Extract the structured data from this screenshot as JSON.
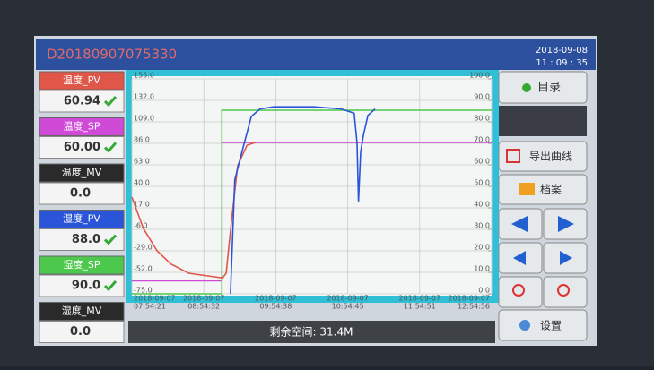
{
  "header": {
    "id": "D20180907075330",
    "date": "2018-09-08",
    "time": "11 : 09 : 35"
  },
  "readouts": [
    {
      "label": "温度_PV",
      "value": "60.94",
      "color": "#e0574a",
      "check": true
    },
    {
      "label": "温度_SP",
      "value": "60.00",
      "color": "#d04ad8",
      "check": true
    },
    {
      "label": "温度_MV",
      "value": "0.0",
      "color": "#2a2a2a",
      "check": false
    },
    {
      "label": "湿度_PV",
      "value": "88.0",
      "color": "#2a55d8",
      "check": true
    },
    {
      "label": "湿度_SP",
      "value": "90.0",
      "color": "#4cc94c",
      "check": true
    },
    {
      "label": "湿度_MV",
      "value": "0.0",
      "color": "#2a2a2a",
      "check": false
    }
  ],
  "chart": {
    "type": "line",
    "grid": true,
    "xlim": [
      0,
      5
    ],
    "xticks": [
      {
        "value": 0,
        "label": [
          "2018-09-07",
          "07:54:21"
        ]
      },
      {
        "value": 1,
        "label": [
          "2018-09-07",
          "08:54:32"
        ]
      },
      {
        "value": 2,
        "label": [
          "2018-09-07",
          "09:54:38"
        ]
      },
      {
        "value": 3,
        "label": [
          "2018-09-07",
          "10:54:45"
        ]
      },
      {
        "value": 4,
        "label": [
          "2018-09-07",
          "11:54:51"
        ]
      },
      {
        "value": 5,
        "label": [
          "2018-09-07",
          "12:54:56"
        ]
      }
    ],
    "ylim": [
      -75,
      155
    ],
    "yticks": [
      {
        "value": 155,
        "label": "155.0"
      },
      {
        "value": 132,
        "label": "132.0"
      },
      {
        "value": 109,
        "label": "109.0"
      },
      {
        "value": 86,
        "label": "86.0"
      },
      {
        "value": 63,
        "label": "63.0"
      },
      {
        "value": 40,
        "label": "40.0"
      },
      {
        "value": 17,
        "label": "17.0"
      },
      {
        "value": -6,
        "label": "-6.0"
      },
      {
        "value": -29,
        "label": "-29.0"
      },
      {
        "value": -52,
        "label": "-52.0"
      },
      {
        "value": -75,
        "label": "-75.0"
      }
    ],
    "y2lim": [
      0,
      100
    ],
    "y2ticks": [
      {
        "value": 100,
        "label": "100.0"
      },
      {
        "value": 90,
        "label": "90.0"
      },
      {
        "value": 80,
        "label": "80.0"
      },
      {
        "value": 70,
        "label": "70.0"
      },
      {
        "value": 60,
        "label": "60.0"
      },
      {
        "value": 50,
        "label": "50.0"
      },
      {
        "value": 40,
        "label": "40.0"
      },
      {
        "value": 30,
        "label": "30.0"
      },
      {
        "value": 20,
        "label": "20.0"
      },
      {
        "value": 10,
        "label": "10.0"
      },
      {
        "value": 0,
        "label": "0.0"
      }
    ],
    "series": [
      {
        "color": "#d04ad8",
        "axis": "y",
        "x": [
          0,
          1.25,
          1.25,
          5
        ],
        "values": [
          -61,
          -61,
          87,
          87
        ]
      },
      {
        "color": "#4cc94c",
        "axis": "y2",
        "x": [
          0,
          1.25,
          1.25,
          5
        ],
        "values": [
          0,
          0,
          85.4,
          85.4
        ]
      },
      {
        "color": "#e0574a",
        "axis": "y",
        "x": [
          0,
          0.16,
          0.35,
          0.54,
          0.79,
          1.26,
          1.31,
          1.38,
          1.47,
          1.6,
          1.72
        ],
        "values": [
          28.5,
          -5,
          -29,
          -43,
          -53,
          -58,
          -53,
          0,
          62,
          84,
          87
        ]
      },
      {
        "color": "#2a55d8",
        "axis": "y2",
        "x": [
          1.37,
          1.43,
          1.53,
          1.66,
          1.78,
          1.97,
          2.53,
          2.91,
          3.09,
          3.13,
          3.15,
          3.18,
          3.22,
          3.28,
          3.38
        ],
        "values": [
          0,
          53,
          66,
          82.5,
          86,
          87,
          87,
          86,
          84,
          70,
          43,
          66,
          74,
          83,
          86
        ]
      }
    ]
  },
  "buttons": {
    "menu": "目录",
    "export": "导出曲线",
    "archive": "档案",
    "settings": "设置"
  },
  "status": "剩余空间: 31.4M"
}
